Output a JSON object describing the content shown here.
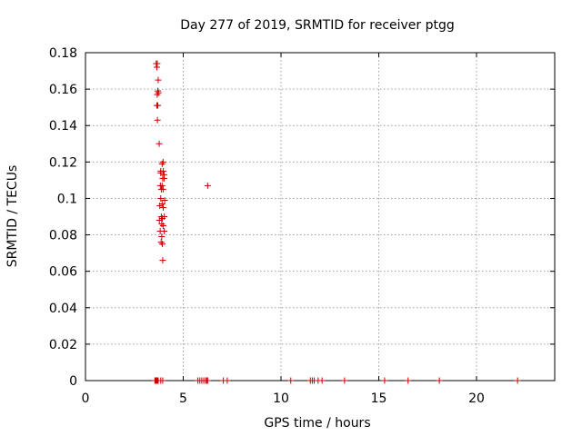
{
  "chart_data": {
    "type": "scatter",
    "title": "Day 277 of 2019, SRMTID for receiver ptgg",
    "xlabel": "GPS time / hours",
    "ylabel": "SRMTID / TECUs",
    "xlim": [
      0,
      24
    ],
    "ylim": [
      0,
      0.18
    ],
    "xticks": [
      0,
      5,
      10,
      15,
      20
    ],
    "xtick_labels": [
      "0",
      "5",
      "10",
      "15",
      "20"
    ],
    "yticks": [
      0,
      0.02,
      0.04,
      0.06,
      0.08,
      0.1,
      0.12,
      0.14,
      0.16,
      0.18
    ],
    "ytick_labels": [
      "0",
      "0.02",
      "0.04",
      "0.06",
      "0.08",
      "0.1",
      "0.12",
      "0.14",
      "0.16",
      "0.18"
    ],
    "grid": true,
    "marker": "+",
    "color": "#cc0000",
    "series": [
      {
        "name": "SRMTID",
        "x": [
          3.62,
          3.67,
          3.65,
          3.72,
          3.7,
          3.67,
          3.73,
          3.7,
          3.65,
          3.77,
          3.68,
          3.97,
          3.92,
          3.85,
          3.98,
          4.02,
          3.85,
          3.95,
          4.02,
          3.83,
          3.92,
          3.88,
          3.97,
          4.05,
          3.85,
          3.92,
          3.8,
          3.98,
          4.03,
          3.88,
          3.93,
          3.78,
          3.9,
          3.97,
          3.82,
          4.03,
          3.9,
          3.87,
          3.93,
          3.95,
          6.25,
          3.55,
          3.58,
          3.62,
          3.65,
          3.68,
          3.72,
          3.85,
          3.95,
          5.75,
          5.85,
          5.95,
          6.05,
          6.15,
          6.2,
          6.25,
          7.05,
          7.25,
          10.5,
          11.5,
          11.6,
          11.7,
          11.9,
          12.1,
          13.25,
          15.3,
          16.5,
          18.1,
          22.1
        ],
        "y": [
          0.174,
          0.174,
          0.172,
          0.165,
          0.159,
          0.157,
          0.158,
          0.151,
          0.151,
          0.13,
          0.143,
          0.12,
          0.119,
          0.115,
          0.115,
          0.113,
          0.114,
          0.111,
          0.111,
          0.107,
          0.107,
          0.105,
          0.105,
          0.099,
          0.1,
          0.097,
          0.096,
          0.095,
          0.09,
          0.09,
          0.089,
          0.088,
          0.086,
          0.085,
          0.082,
          0.082,
          0.079,
          0.076,
          0.075,
          0.066,
          0.107,
          0,
          0,
          0,
          0,
          0,
          0,
          0,
          0,
          0,
          0,
          0,
          0,
          0,
          0,
          0,
          0,
          0,
          0,
          0,
          0,
          0,
          0,
          0,
          0,
          0,
          0,
          0,
          0
        ]
      }
    ]
  }
}
